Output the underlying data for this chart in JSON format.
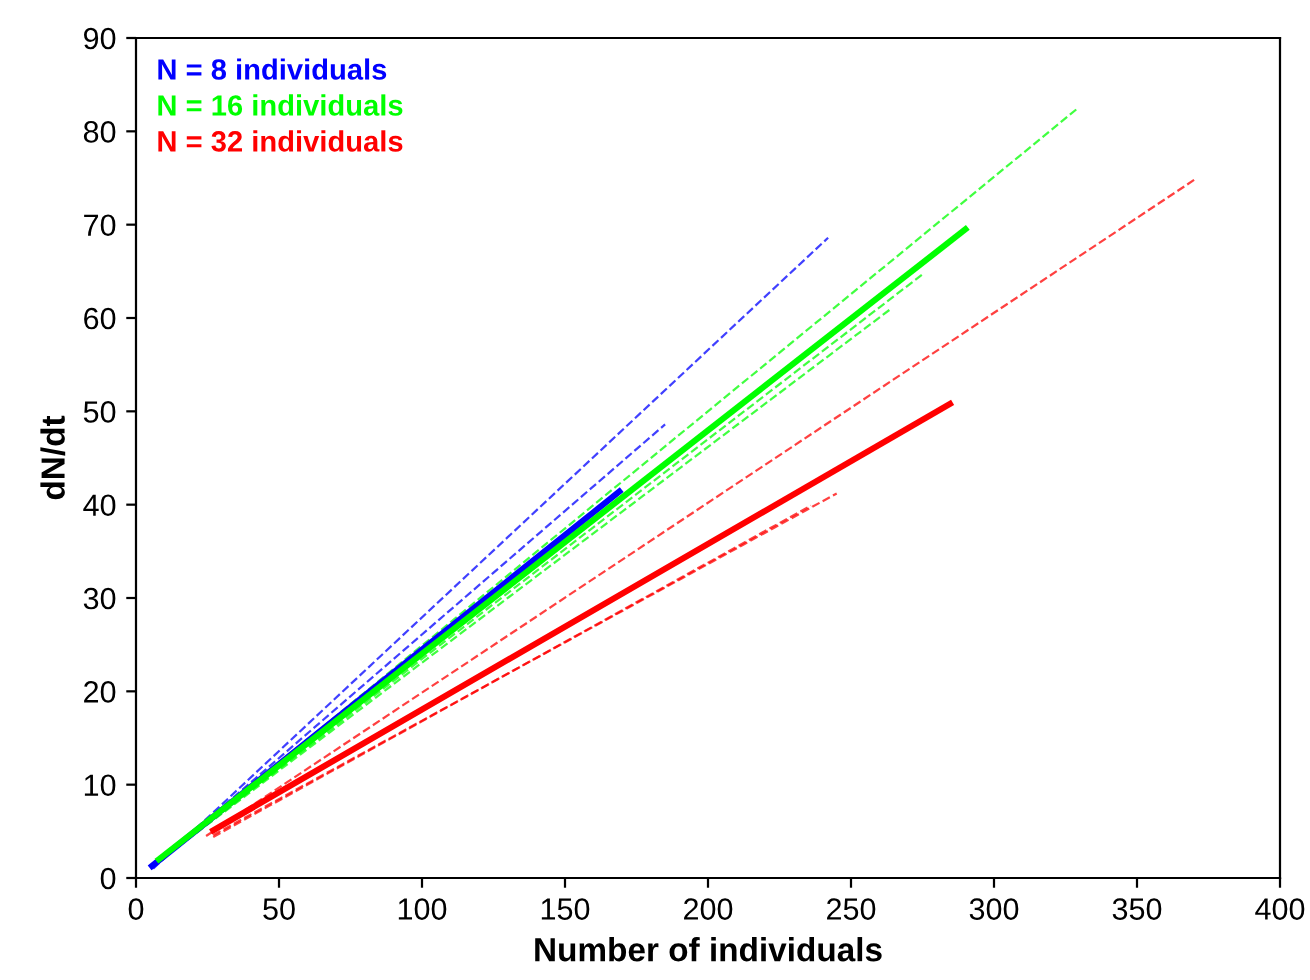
{
  "chart_data": {
    "type": "line",
    "xlabel": "Number of individuals",
    "ylabel": "dN/dt",
    "xlim": [
      0,
      400
    ],
    "ylim": [
      0,
      90
    ],
    "xticks": [
      0,
      50,
      100,
      150,
      200,
      250,
      300,
      350,
      400
    ],
    "yticks": [
      0,
      10,
      20,
      30,
      40,
      50,
      60,
      70,
      80,
      90
    ],
    "grid": false,
    "legend": "top left",
    "marker": "none",
    "series": [
      {
        "x": [
          6,
          242
        ],
        "values": [
          1,
          68.6
        ],
        "color": "#0000ff",
        "line_style": "dashed"
      },
      {
        "x": [
          6,
          185
        ],
        "values": [
          1.2,
          48.6
        ],
        "color": "#0000ff",
        "line_style": "dashed"
      },
      {
        "x": [
          8,
          329
        ],
        "values": [
          1.8,
          82.4
        ],
        "color": "#00ff00",
        "line_style": "dashed"
      },
      {
        "x": [
          8,
          275.5
        ],
        "values": [
          1.8,
          64.8
        ],
        "color": "#00ff00",
        "line_style": "dashed"
      },
      {
        "x": [
          8,
          263.6
        ],
        "values": [
          1.8,
          60.9
        ],
        "color": "#00ff00",
        "line_style": "dashed"
      },
      {
        "x": [
          24.5,
          370
        ],
        "values": [
          4.5,
          74.8
        ],
        "color": "#ff0000",
        "line_style": "dashed"
      },
      {
        "x": [
          27,
          245
        ],
        "values": [
          4.6,
          41.2
        ],
        "color": "#ff0000",
        "line_style": "dashed"
      },
      {
        "x": [
          27,
          236
        ],
        "values": [
          4.4,
          39.9
        ],
        "color": "#ff0000",
        "line_style": "dashed"
      },
      {
        "name": "N = 8 individuals",
        "x": [
          5.6,
          169
        ],
        "values": [
          1.3,
          41.4
        ],
        "color": "#0000ff",
        "line_style": "solid"
      },
      {
        "name": "N = 16 individuals",
        "x": [
          8,
          290
        ],
        "values": [
          2,
          69.5
        ],
        "color": "#00ff00",
        "line_style": "solid"
      },
      {
        "name": "N = 32 individuals",
        "x": [
          27,
          284.6
        ],
        "values": [
          5.1,
          50.8
        ],
        "color": "#ff0000",
        "line_style": "solid"
      }
    ]
  }
}
